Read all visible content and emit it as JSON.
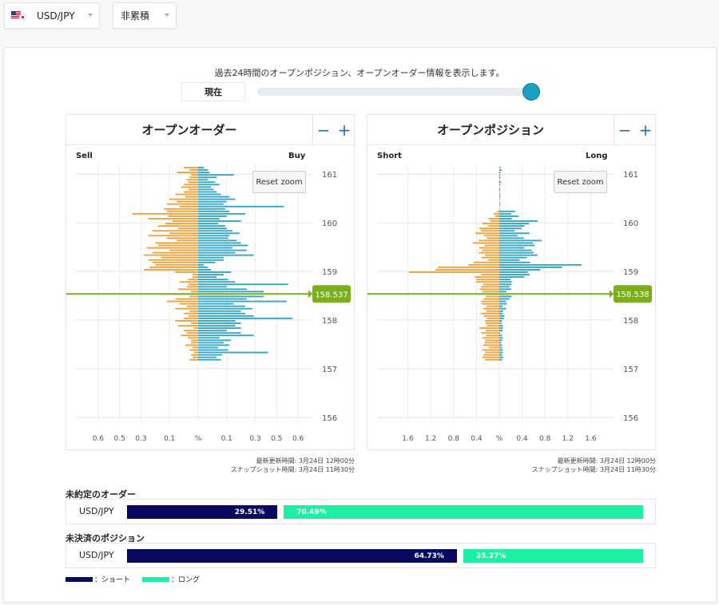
{
  "selectors": {
    "pair": "USD/JPY",
    "mode": "非累積"
  },
  "header": {
    "description": "過去24時間のオープンポジション、オープンオーダー情報を表示します。",
    "now_button": "現在"
  },
  "colors": {
    "sell_short": "#f3a137",
    "buy_long": "#2fa6c4",
    "price_line": "#7bae1c",
    "short_bar": "#07085e",
    "long_bar": "#1df0a5"
  },
  "zoom": {
    "minus": "−",
    "plus": "+",
    "reset": "Reset zoom"
  },
  "chart_data": [
    {
      "type": "bar",
      "orientation": "horizontal-butterfly",
      "title": "オープンオーダー",
      "left_label": "Sell",
      "right_label": "Buy",
      "y_ticks": [
        "161",
        "160",
        "159",
        "158",
        "157",
        "156"
      ],
      "y_range": [
        155.9,
        161.2
      ],
      "x_range": [
        -0.8,
        0.8
      ],
      "x_ticks": [
        "0.6",
        "0.5",
        "0.3",
        "0.1",
        "%",
        "0.1",
        "0.3",
        "0.5",
        "0.6"
      ],
      "current_price": "158.537",
      "bin_width": 0.05,
      "bins_from_top": 80,
      "left_values": [
        0.1,
        0.06,
        0.15,
        0.05,
        0.06,
        0.08,
        0.07,
        0.1,
        0.12,
        0.07,
        0.1,
        0.16,
        0.09,
        0.2,
        0.15,
        0.22,
        0.13,
        0.24,
        0.22,
        0.46,
        0.21,
        0.35,
        0.18,
        0.23,
        0.28,
        0.14,
        0.32,
        0.2,
        0.35,
        0.22,
        0.15,
        0.3,
        0.28,
        0.36,
        0.2,
        0.32,
        0.38,
        0.26,
        0.35,
        0.32,
        0.3,
        0.34,
        0.38,
        0.16,
        0.04,
        0.04,
        0.07,
        0.13,
        0.07,
        0.08,
        0.14,
        0.05,
        0.27,
        0.06,
        0.16,
        0.22,
        0.13,
        0.08,
        0.16,
        0.06,
        0.1,
        0.07,
        0.1,
        0.16,
        0.05,
        0.14,
        0.03,
        0.1,
        0.08,
        0.12,
        0.07,
        0.05,
        0.05,
        0.09,
        0.04,
        0.06,
        0.03,
        0.05,
        0.04,
        0.06
      ],
      "right_values": [
        0.04,
        0.07,
        0.08,
        0.25,
        0.13,
        0.07,
        0.12,
        0.15,
        0.09,
        0.11,
        0.13,
        0.16,
        0.22,
        0.26,
        0.2,
        0.18,
        0.6,
        0.19,
        0.22,
        0.33,
        0.2,
        0.15,
        0.3,
        0.14,
        0.19,
        0.2,
        0.24,
        0.29,
        0.22,
        0.21,
        0.27,
        0.3,
        0.35,
        0.24,
        0.34,
        0.26,
        0.39,
        0.18,
        0.18,
        0.12,
        0.04,
        0.07,
        0.09,
        0.23,
        0.18,
        0.13,
        0.21,
        0.26,
        0.63,
        0.2,
        0.34,
        0.46,
        0.28,
        0.46,
        0.34,
        0.62,
        0.25,
        0.33,
        0.38,
        0.3,
        0.33,
        0.39,
        0.66,
        0.26,
        0.3,
        0.26,
        0.3,
        0.2,
        0.3,
        0.39,
        0.15,
        0.23,
        0.18,
        0.22,
        0.14,
        0.21,
        0.49,
        0.17,
        0.13,
        0.16
      ]
    },
    {
      "type": "bar",
      "orientation": "horizontal-butterfly",
      "title": "オープンポジション",
      "left_label": "Short",
      "right_label": "Long",
      "y_ticks": [
        "161",
        "160",
        "159",
        "158",
        "157",
        "156"
      ],
      "y_range": [
        155.9,
        161.2
      ],
      "x_range": [
        -2.0,
        2.0
      ],
      "x_ticks": [
        "1.6",
        "1.2",
        "0.8",
        "0.4",
        "%",
        "0.4",
        "0.8",
        "1.2",
        "1.6"
      ],
      "current_price": "158.538",
      "bin_width": 0.05,
      "bins_from_top": 80,
      "left_values": [
        0,
        0,
        0.01,
        0,
        0.01,
        0,
        0.01,
        0,
        0,
        0.01,
        0,
        0,
        0,
        0,
        0,
        0,
        0,
        0,
        0.04,
        0.1,
        0.07,
        0.19,
        0.16,
        0.3,
        0.2,
        0.35,
        0.32,
        0.42,
        0.27,
        0.22,
        0.36,
        0.47,
        0.26,
        0.35,
        0.3,
        0.36,
        0.25,
        0.31,
        0.2,
        0.45,
        0.54,
        1.08,
        1.12,
        1.58,
        0.32,
        0.43,
        0.4,
        0.41,
        0.28,
        0.32,
        0.34,
        0.3,
        0.27,
        0.24,
        0.28,
        0.32,
        0.31,
        0.23,
        0.28,
        0.23,
        0.32,
        0.27,
        0.22,
        0.25,
        0.24,
        0.22,
        0.35,
        0.24,
        0.32,
        0.23,
        0.3,
        0.25,
        0.26,
        0.28,
        0.18,
        0.3,
        0.25,
        0.28,
        0.3,
        0.25
      ],
      "right_values": [
        0.02,
        0.04,
        0.02,
        0.02,
        0.02,
        0.01,
        0.03,
        0.02,
        0.01,
        0.02,
        0.01,
        0.02,
        0.02,
        0.01,
        0.01,
        0.02,
        0.01,
        0.01,
        0.28,
        0.21,
        0.34,
        0.22,
        0.67,
        0.52,
        0.44,
        0.39,
        0.27,
        0.53,
        0.32,
        0.43,
        0.74,
        0.59,
        0.62,
        0.44,
        0.57,
        0.6,
        0.67,
        0.48,
        0.36,
        0.54,
        1.44,
        1.1,
        0.72,
        0.5,
        0.53,
        0.44,
        0.2,
        0.22,
        0.21,
        0.18,
        0.21,
        0.12,
        0.17,
        0.22,
        0.18,
        0.12,
        0.13,
        0.06,
        0.12,
        0.07,
        0.06,
        0.09,
        0.08,
        0.05,
        0.04,
        0.06,
        0.06,
        0.06,
        0.02,
        0.05,
        0.06,
        0.05,
        0.03,
        0.05,
        0.05,
        0.06,
        0.06,
        0.05,
        0.07,
        0.05
      ]
    }
  ],
  "updates": {
    "orders": {
      "latest": "最新更新時間: 3月24日 12時00分",
      "snapshot": "スナップショット時間: 3月24日 11時30分"
    },
    "positions": {
      "latest": "最新更新時間: 3月24日 12時00分",
      "snapshot": "スナップショット時間: 3月24日 11時30分"
    }
  },
  "unfilled_orders": {
    "title": "未約定のオーダー",
    "pair": "USD/JPY",
    "short_pct": 29.51,
    "long_pct": 70.49,
    "short_label": "29.51%",
    "long_label": "70.49%"
  },
  "open_positions": {
    "title": "未決済のポジション",
    "pair": "USD/JPY",
    "short_pct": 64.73,
    "long_pct": 35.27,
    "short_label": "64.73%",
    "long_label": "35.27%"
  },
  "legend": {
    "short": "：ショート",
    "long": "：ロング"
  }
}
